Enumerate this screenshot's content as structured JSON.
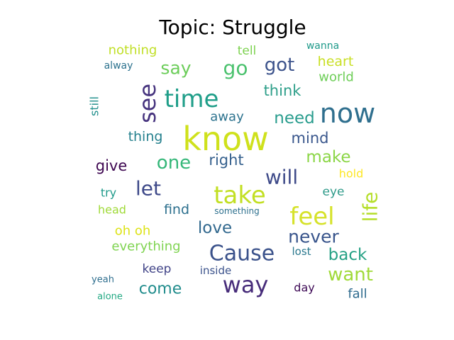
{
  "chart_data": {
    "type": "wordcloud",
    "title": "Topic: Struggle",
    "words": [
      {
        "text": "know",
        "weight": 100,
        "color": "#cfe11c",
        "vertical": false
      },
      {
        "text": "now",
        "weight": 86,
        "color": "#2f6f8e",
        "vertical": false
      },
      {
        "text": "take",
        "weight": 75,
        "color": "#c2df23",
        "vertical": false
      },
      {
        "text": "time",
        "weight": 75,
        "color": "#1f9e89",
        "vertical": false
      },
      {
        "text": "feel",
        "weight": 75,
        "color": "#d6e22b",
        "vertical": false
      },
      {
        "text": "see",
        "weight": 70,
        "color": "#46337e",
        "vertical": true
      },
      {
        "text": "way",
        "weight": 70,
        "color": "#472c7a",
        "vertical": false
      },
      {
        "text": "Cause",
        "weight": 66,
        "color": "#3b528b",
        "vertical": false
      },
      {
        "text": "life",
        "weight": 60,
        "color": "#b5de2b",
        "vertical": true
      },
      {
        "text": "will",
        "weight": 62,
        "color": "#3e4a89",
        "vertical": false
      },
      {
        "text": "go",
        "weight": 62,
        "color": "#4ac16d",
        "vertical": false
      },
      {
        "text": "got",
        "weight": 58,
        "color": "#3b528b",
        "vertical": false
      },
      {
        "text": "let",
        "weight": 62,
        "color": "#3e4989",
        "vertical": false
      },
      {
        "text": "want",
        "weight": 58,
        "color": "#a0da39",
        "vertical": false
      },
      {
        "text": "one",
        "weight": 58,
        "color": "#35b779",
        "vertical": false
      },
      {
        "text": "say",
        "weight": 55,
        "color": "#6ccd5a",
        "vertical": false
      },
      {
        "text": "never",
        "weight": 55,
        "color": "#39558c",
        "vertical": false
      },
      {
        "text": "love",
        "weight": 50,
        "color": "#31688e",
        "vertical": false
      },
      {
        "text": "need",
        "weight": 50,
        "color": "#2a9d8e",
        "vertical": false
      },
      {
        "text": "make",
        "weight": 50,
        "color": "#8bd646",
        "vertical": false
      },
      {
        "text": "back",
        "weight": 50,
        "color": "#26a185",
        "vertical": false
      },
      {
        "text": "come",
        "weight": 48,
        "color": "#228d8d",
        "vertical": false
      },
      {
        "text": "think",
        "weight": 46,
        "color": "#2f9f8a",
        "vertical": false
      },
      {
        "text": "right",
        "weight": 46,
        "color": "#35608d",
        "vertical": false
      },
      {
        "text": "give",
        "weight": 46,
        "color": "#3e0751",
        "vertical": false
      },
      {
        "text": "mind",
        "weight": 46,
        "color": "#39568c",
        "vertical": false
      },
      {
        "text": "find",
        "weight": 42,
        "color": "#2d708e",
        "vertical": false
      },
      {
        "text": "thing",
        "weight": 42,
        "color": "#26818e",
        "vertical": false
      },
      {
        "text": "heart",
        "weight": 42,
        "color": "#c9df24",
        "vertical": false
      },
      {
        "text": "world",
        "weight": 40,
        "color": "#6ece58",
        "vertical": false
      },
      {
        "text": "away",
        "weight": 40,
        "color": "#2c728e",
        "vertical": false
      },
      {
        "text": "oh oh",
        "weight": 40,
        "color": "#dde318",
        "vertical": false
      },
      {
        "text": "everything",
        "weight": 40,
        "color": "#80d452",
        "vertical": false
      },
      {
        "text": "fall",
        "weight": 40,
        "color": "#2f6b8e",
        "vertical": false
      },
      {
        "text": "nothing",
        "weight": 40,
        "color": "#c0df25",
        "vertical": false
      },
      {
        "text": "tell",
        "weight": 38,
        "color": "#7dd250",
        "vertical": false
      },
      {
        "text": "eye",
        "weight": 38,
        "color": "#2e9a89",
        "vertical": false
      },
      {
        "text": "keep",
        "weight": 38,
        "color": "#404387",
        "vertical": false
      },
      {
        "text": "day",
        "weight": 36,
        "color": "#3e0a56",
        "vertical": false
      },
      {
        "text": "head",
        "weight": 36,
        "color": "#a0da39",
        "vertical": false
      },
      {
        "text": "still",
        "weight": 36,
        "color": "#208f8c",
        "vertical": true
      },
      {
        "text": "hold",
        "weight": 36,
        "color": "#fde725",
        "vertical": false
      },
      {
        "text": "try",
        "weight": 35,
        "color": "#1f9a8a",
        "vertical": false
      },
      {
        "text": "lost",
        "weight": 34,
        "color": "#2a788e",
        "vertical": false
      },
      {
        "text": "inside",
        "weight": 34,
        "color": "#3b528b",
        "vertical": false
      },
      {
        "text": "wanna",
        "weight": 32,
        "color": "#1f9a8a",
        "vertical": false
      },
      {
        "text": "alway",
        "weight": 32,
        "color": "#2c728e",
        "vertical": false
      },
      {
        "text": "yeah",
        "weight": 30,
        "color": "#2e6e8e",
        "vertical": false
      },
      {
        "text": "alone",
        "weight": 28,
        "color": "#23a983",
        "vertical": false
      },
      {
        "text": "something",
        "weight": 26,
        "color": "#2d708e",
        "vertical": false
      }
    ]
  }
}
